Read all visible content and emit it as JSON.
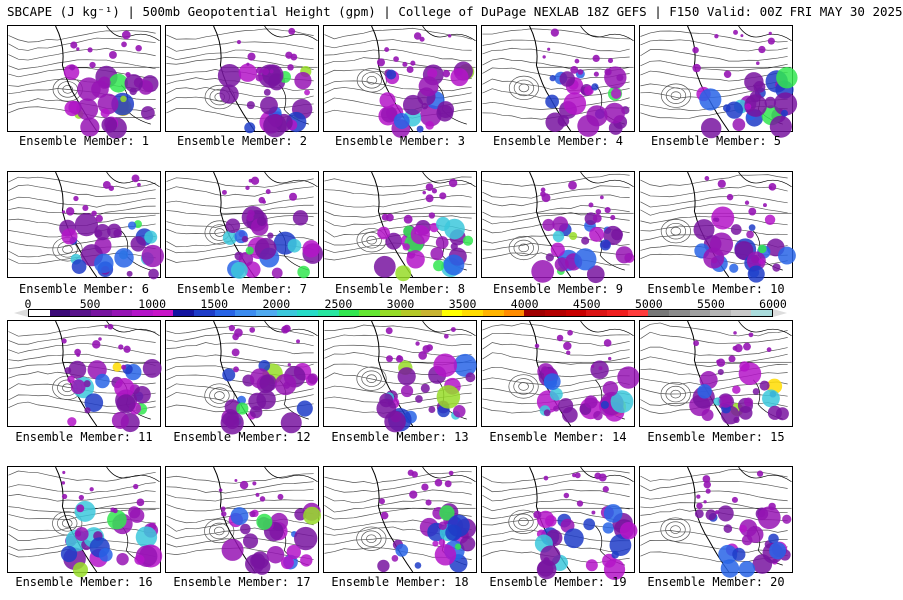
{
  "title": "SBCAPE (J kg⁻¹) | 500mb Geopotential Height (gpm) | College of DuPage NEXLAB 18Z GEFS | F150 Valid: 00Z FRI MAY 30 2025",
  "label_prefix": "Ensemble Member: ",
  "members": [
    "1",
    "2",
    "3",
    "4",
    "5",
    "6",
    "7",
    "8",
    "9",
    "10",
    "11",
    "12",
    "13",
    "14",
    "15",
    "16",
    "17",
    "18",
    "19",
    "20"
  ],
  "colorbar": {
    "ticks": [
      "0",
      "500",
      "1000",
      "1500",
      "2000",
      "2500",
      "3000",
      "3500",
      "4000",
      "4500",
      "5000",
      "5500",
      "6000"
    ],
    "colors": [
      "#ffffff",
      "#3c0a78",
      "#5a148c",
      "#7814a0",
      "#9614b4",
      "#b414c8",
      "#c814c8",
      "#1414a0",
      "#1e3cc8",
      "#2864e6",
      "#3c8cf0",
      "#50aaf0",
      "#3cc8dc",
      "#28dcc8",
      "#28e6a0",
      "#32e650",
      "#64e632",
      "#96dc28",
      "#b4c828",
      "#c8b432",
      "#ffff00",
      "#ffdc00",
      "#ffb400",
      "#ff8c00",
      "#a00000",
      "#b40000",
      "#c80000",
      "#dc1414",
      "#f01e1e",
      "#ff3c3c",
      "#787878",
      "#8c8c8c",
      "#a0a0a0",
      "#b4b4b4",
      "#c8c8c8",
      "#aadcdc"
    ]
  }
}
